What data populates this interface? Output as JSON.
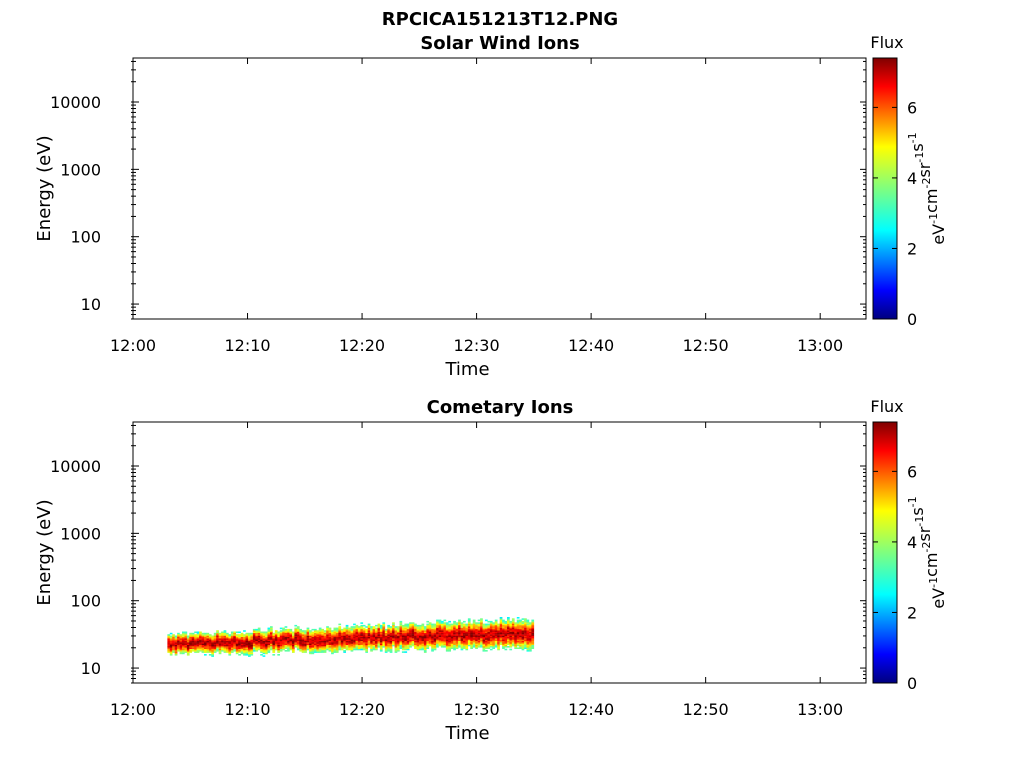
{
  "figure": {
    "title": "RPCICA151213T12.PNG"
  },
  "colorbar_label": "Flux",
  "colorbar_unit_parts": [
    "eV",
    "-1",
    "cm",
    "-2",
    "sr",
    "-1",
    "s",
    "-1"
  ],
  "colorbar_ticks": [
    0,
    2,
    4,
    6
  ],
  "colors": {
    "axis": "#000000",
    "background": "#ffffff"
  },
  "chart_data": [
    {
      "type": "heatmap",
      "title": "Solar Wind Ions",
      "xlabel": "Time",
      "ylabel": "Energy (eV)",
      "x_ticks": [
        "12:00",
        "12:10",
        "12:20",
        "12:30",
        "12:40",
        "12:50",
        "13:00"
      ],
      "x_range": [
        "12:00",
        "13:04"
      ],
      "y_scale": "log",
      "y_ticks": [
        10,
        100,
        1000,
        10000
      ],
      "y_range": [
        6,
        45000
      ],
      "colorbar": {
        "label": "Flux",
        "range": [
          0,
          7.4
        ],
        "ticks": [
          0,
          2,
          4,
          6
        ],
        "colormap": "jet"
      },
      "data": []
    },
    {
      "type": "heatmap",
      "title": "Cometary Ions",
      "xlabel": "Time",
      "ylabel": "Energy (eV)",
      "x_ticks": [
        "12:00",
        "12:10",
        "12:20",
        "12:30",
        "12:40",
        "12:50",
        "13:00"
      ],
      "x_range": [
        "12:00",
        "13:04"
      ],
      "y_scale": "log",
      "y_ticks": [
        10,
        100,
        1000,
        10000
      ],
      "y_range": [
        6,
        45000
      ],
      "colorbar": {
        "label": "Flux",
        "range": [
          0,
          7.4
        ],
        "ticks": [
          0,
          2,
          4,
          6
        ],
        "colormap": "jet"
      },
      "data_band": {
        "time_start": "12:03",
        "time_end": "12:35",
        "energy_min": 10,
        "energy_max": 80,
        "peak_energy_start": 22,
        "peak_energy_end": 32,
        "peak_flux": 7
      }
    }
  ]
}
